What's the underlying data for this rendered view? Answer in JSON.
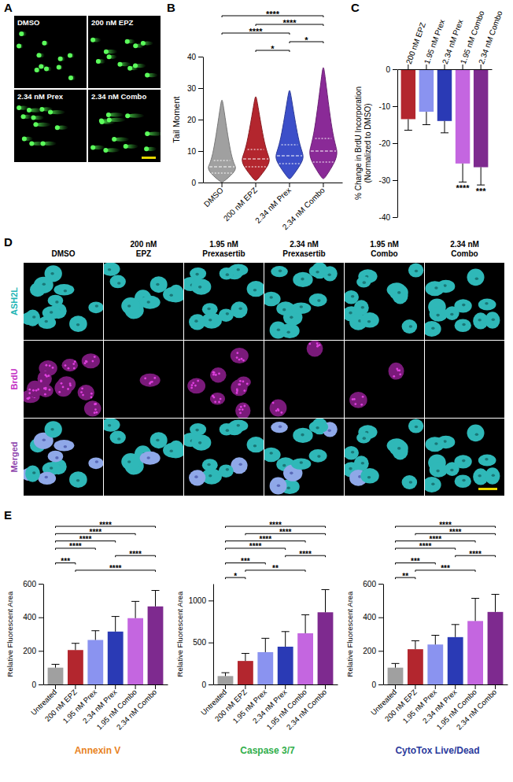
{
  "images": [
    {
      "panel": "A",
      "labels": [
        "DMSO",
        "200 nM EPZ",
        "2.34 nM Prex",
        "2.34 nM Combo"
      ]
    },
    {
      "panel": "D",
      "columns": [
        "DMSO",
        "200 nM EPZ",
        "1.95 nM Prexasertib",
        "2.34 nM Prexasertib",
        "1.95 nM Combo",
        "2.34 nM Combo"
      ],
      "rows": [
        "ASH2L",
        "BrdU",
        "Merged"
      ]
    }
  ],
  "chart_data": [
    {
      "panel": "B",
      "type": "violin",
      "y_label": "Tail Moment",
      "categories": [
        "DMSO",
        "200 nM EPZ",
        "2.34 nM Prex",
        "2.34 nM Combo"
      ],
      "min": [
        0,
        0.5,
        1,
        1
      ],
      "q1": [
        3,
        5,
        6,
        6.5
      ],
      "median": [
        5,
        7.5,
        8.5,
        10
      ],
      "q3": [
        7,
        10.5,
        12,
        14
      ],
      "max": [
        27,
        28,
        30,
        37.5
      ],
      "colors": [
        "#a0a0a0",
        "#b3262e",
        "#3c4fc9",
        "#8a2a97"
      ],
      "ylim": [
        0,
        40
      ],
      "yticks": [
        0,
        10,
        20,
        30,
        40
      ],
      "significance": [
        {
          "pair": [
            "DMSO",
            "2.34 nM Combo"
          ],
          "label": "****"
        },
        {
          "pair": [
            "200 nM EPZ",
            "2.34 nM Combo"
          ],
          "label": "****"
        },
        {
          "pair": [
            "DMSO",
            "2.34 nM Prex"
          ],
          "label": "****"
        },
        {
          "pair": [
            "2.34 nM Prex",
            "2.34 nM Combo"
          ],
          "label": "*"
        },
        {
          "pair": [
            "200 nM EPZ",
            "2.34 nM Prex"
          ],
          "label": "*"
        }
      ]
    },
    {
      "panel": "C",
      "type": "bar",
      "y_label": "% Change in BrdU Incorporation (Normalized to DMSO)",
      "categories": [
        "200 nM EPZ",
        "1.95 nM Prex",
        "2.34 nM Prex",
        "1.95 nM Combo",
        "2.34 nM Combo"
      ],
      "values": [
        -13.5,
        -11.5,
        -14,
        -25.5,
        -26.5
      ],
      "errors": [
        3,
        3.5,
        3.2,
        5,
        4.8
      ],
      "significance_labels": [
        null,
        null,
        null,
        "****",
        "***"
      ],
      "colors": [
        "#b3262e",
        "#8a93f0",
        "#2a3ab5",
        "#c466e0",
        "#7e2a8f"
      ],
      "ylim": [
        -40,
        0
      ],
      "yticks": [
        -40,
        -30,
        -20,
        -10,
        0
      ]
    },
    {
      "panel": "E",
      "type": "bar",
      "title": "Annexin V",
      "y_label": "Relative Fluorescent Area",
      "categories": [
        "Untreated",
        "200 nM EPZ",
        "1.95 nM Prex",
        "2.34 nM Prex",
        "1.95 nM Combo",
        "2.34 nM Combo"
      ],
      "values": [
        100,
        205,
        265,
        315,
        395,
        465
      ],
      "errors": [
        20,
        40,
        55,
        90,
        100,
        95
      ],
      "colors": [
        "#a0a0a0",
        "#b3262e",
        "#8a93f0",
        "#2a3ab5",
        "#c466e0",
        "#7e2a8f"
      ],
      "ylim": [
        0,
        600
      ],
      "yticks": [
        0,
        200,
        400,
        600
      ],
      "significance": [
        {
          "pair": [
            "Untreated",
            "2.34 nM Combo"
          ],
          "label": "****"
        },
        {
          "pair": [
            "Untreated",
            "1.95 nM Combo"
          ],
          "label": "****"
        },
        {
          "pair": [
            "Untreated",
            "2.34 nM Prex"
          ],
          "label": "****"
        },
        {
          "pair": [
            "Untreated",
            "1.95 nM Prex"
          ],
          "label": "****"
        },
        {
          "pair": [
            "2.34 nM Prex",
            "2.34 nM Combo"
          ],
          "label": "****"
        },
        {
          "pair": [
            "Untreated",
            "200 nM EPZ"
          ],
          "label": "***"
        },
        {
          "pair": [
            "200 nM EPZ",
            "2.34 nM Combo"
          ],
          "label": "****"
        }
      ]
    },
    {
      "type": "bar",
      "title": "Caspase 3/7",
      "y_label": "Relative Fluorescent Area",
      "categories": [
        "Untreated",
        "200 nM EPZ",
        "1.95 nM Prex",
        "2.34 nM Prex",
        "1.95 nM Combo",
        "2.34 nM Combo"
      ],
      "values": [
        100,
        280,
        385,
        450,
        610,
        860
      ],
      "errors": [
        40,
        90,
        165,
        180,
        220,
        270
      ],
      "colors": [
        "#a0a0a0",
        "#b3262e",
        "#8a93f0",
        "#2a3ab5",
        "#c466e0",
        "#7e2a8f"
      ],
      "ylim": [
        0,
        1200
      ],
      "yticks": [
        0,
        500,
        1000
      ],
      "significance": [
        {
          "pair": [
            "Untreated",
            "2.34 nM Combo"
          ],
          "label": "****"
        },
        {
          "pair": [
            "200 nM EPZ",
            "2.34 nM Combo"
          ],
          "label": "****"
        },
        {
          "pair": [
            "Untreated",
            "1.95 nM Combo"
          ],
          "label": "****"
        },
        {
          "pair": [
            "Untreated",
            "2.34 nM Prex"
          ],
          "label": "****"
        },
        {
          "pair": [
            "2.34 nM Prex",
            "2.34 nM Combo"
          ],
          "label": "****"
        },
        {
          "pair": [
            "Untreated",
            "1.95 nM Prex"
          ],
          "label": "***"
        },
        {
          "pair": [
            "200 nM EPZ",
            "1.95 nM Combo"
          ],
          "label": "**"
        },
        {
          "pair": [
            "Untreated",
            "200 nM EPZ"
          ],
          "label": "*"
        }
      ]
    },
    {
      "type": "bar",
      "title": "CytoTox Live/Dead",
      "y_label": "Relative Fluorescent Area",
      "categories": [
        "Untreated",
        "200 nM EPZ",
        "1.95 nM Prex",
        "2.34 nM Prex",
        "1.95 nM Combo",
        "2.34 nM Combo"
      ],
      "values": [
        100,
        210,
        238,
        282,
        378,
        432
      ],
      "errors": [
        25,
        50,
        55,
        75,
        135,
        105
      ],
      "colors": [
        "#a0a0a0",
        "#b3262e",
        "#8a93f0",
        "#2a3ab5",
        "#c466e0",
        "#7e2a8f"
      ],
      "ylim": [
        0,
        600
      ],
      "yticks": [
        0,
        200,
        400,
        600
      ],
      "significance": [
        {
          "pair": [
            "Untreated",
            "2.34 nM Combo"
          ],
          "label": "****"
        },
        {
          "pair": [
            "200 nM EPZ",
            "2.34 nM Combo"
          ],
          "label": "****"
        },
        {
          "pair": [
            "Untreated",
            "1.95 nM Combo"
          ],
          "label": "****"
        },
        {
          "pair": [
            "Untreated",
            "2.34 nM Prex"
          ],
          "label": "****"
        },
        {
          "pair": [
            "2.34 nM Prex",
            "2.34 nM Combo"
          ],
          "label": "****"
        },
        {
          "pair": [
            "Untreated",
            "1.95 nM Prex"
          ],
          "label": "***"
        },
        {
          "pair": [
            "200 nM EPZ",
            "1.95 nM Combo"
          ],
          "label": "***"
        },
        {
          "pair": [
            "Untreated",
            "200 nM EPZ"
          ],
          "label": "**"
        }
      ]
    }
  ]
}
